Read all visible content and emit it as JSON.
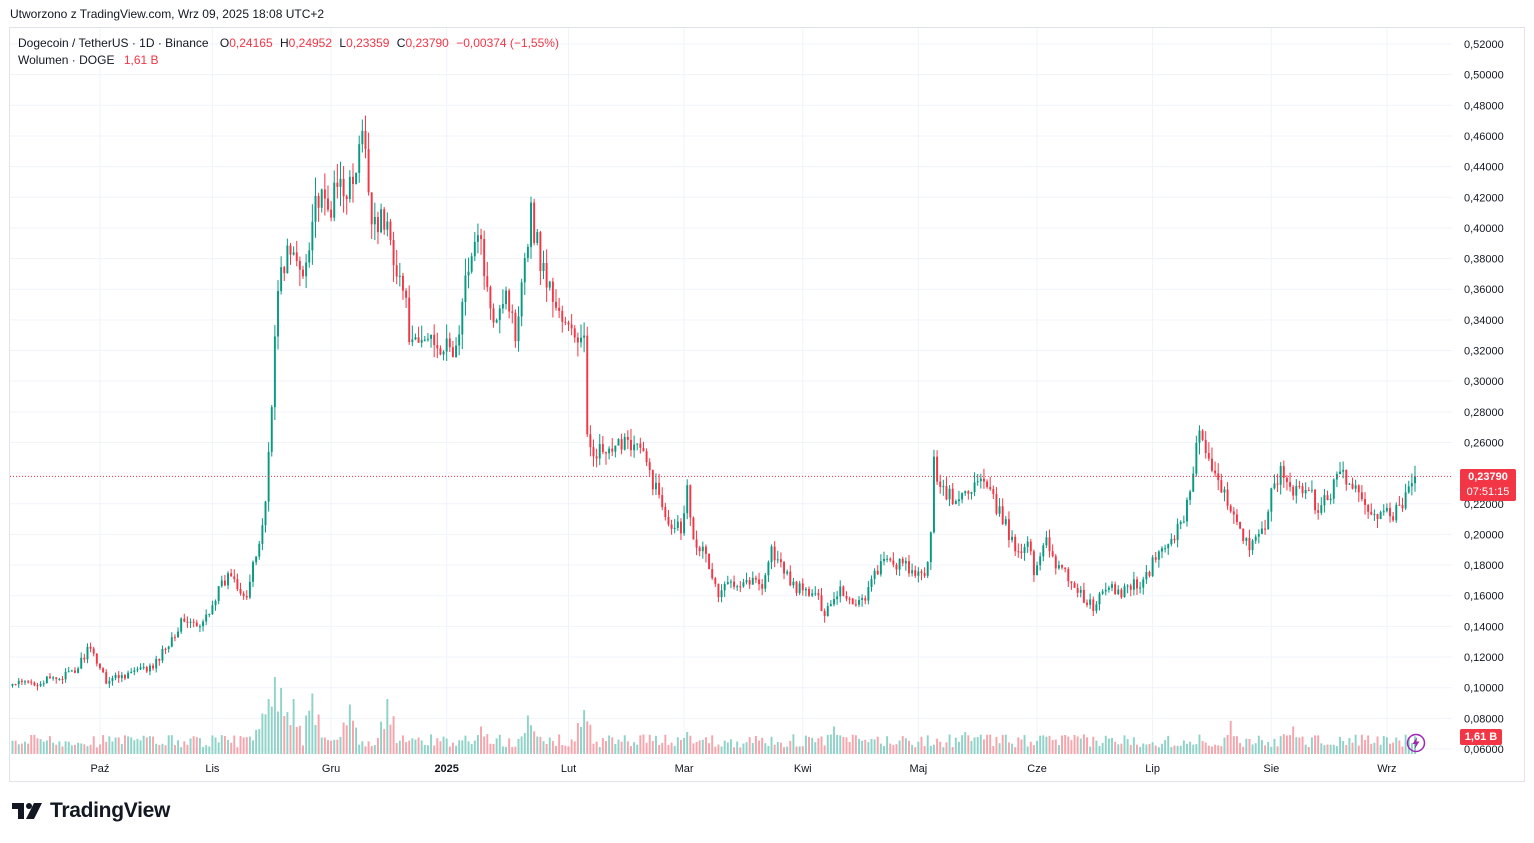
{
  "created_by": "Utworzono z TradingView.com, Wrz 09, 2025 18:08 UTC+2",
  "legend": {
    "symbol": "Dogecoin / TetherUS · 1D · Binance",
    "o_label": "O",
    "o": "0,24165",
    "h_label": "H",
    "h": "0,24952",
    "l_label": "L",
    "l": "0,23359",
    "c_label": "C",
    "c": "0,23790",
    "change": "−0,00374 (−1,55%)",
    "volume_label": "Wolumen · DOGE",
    "volume_value": "1,61 B"
  },
  "last_price": {
    "value": "0,23790",
    "countdown": "07:51:15"
  },
  "last_volume": "1,61 B",
  "brand": "TradingView",
  "colors": {
    "up": "#089981",
    "down": "#f23645",
    "vol_up": "#8fd3c8",
    "vol_down": "#f5a5ab",
    "grid": "#f0f3fa",
    "text": "#131722"
  },
  "chart_data": {
    "type": "candlestick",
    "symbol": "DOGE/USDT",
    "interval": "1D",
    "y_axis_ticks": [
      "0,52000",
      "0,50000",
      "0,48000",
      "0,46000",
      "0,44000",
      "0,42000",
      "0,40000",
      "0,38000",
      "0,36000",
      "0,34000",
      "0,32000",
      "0,30000",
      "0,28000",
      "0,26000",
      "0,24000",
      "0,22000",
      "0,20000",
      "0,18000",
      "0,16000",
      "0,14000",
      "0,12000",
      "0,10000",
      "0,08000",
      "0,06000"
    ],
    "x_axis_ticks": [
      "Paź",
      "Lis",
      "Gru",
      "2025",
      "Lut",
      "Mar",
      "Kwi",
      "Maj",
      "Cze",
      "Lip",
      "Sie",
      "Wrz"
    ],
    "ylim": [
      0.06,
      0.52
    ],
    "last_close": 0.2379,
    "close_anchors": [
      [
        0,
        0.102
      ],
      [
        10,
        0.104
      ],
      [
        15,
        0.107
      ],
      [
        20,
        0.11
      ],
      [
        24,
        0.125
      ],
      [
        27,
        0.118
      ],
      [
        30,
        0.105
      ],
      [
        38,
        0.11
      ],
      [
        45,
        0.113
      ],
      [
        50,
        0.13
      ],
      [
        55,
        0.145
      ],
      [
        60,
        0.138
      ],
      [
        65,
        0.16
      ],
      [
        70,
        0.175
      ],
      [
        72,
        0.168
      ],
      [
        75,
        0.16
      ],
      [
        79,
        0.195
      ],
      [
        81,
        0.22
      ],
      [
        85,
        0.36
      ],
      [
        88,
        0.385
      ],
      [
        93,
        0.37
      ],
      [
        97,
        0.42
      ],
      [
        101,
        0.41
      ],
      [
        105,
        0.43
      ],
      [
        109,
        0.425
      ],
      [
        112,
        0.46
      ],
      [
        115,
        0.41
      ],
      [
        120,
        0.4
      ],
      [
        125,
        0.36
      ],
      [
        128,
        0.32
      ],
      [
        134,
        0.33
      ],
      [
        139,
        0.32
      ],
      [
        142,
        0.32
      ],
      [
        147,
        0.39
      ],
      [
        150,
        0.39
      ],
      [
        153,
        0.34
      ],
      [
        158,
        0.36
      ],
      [
        161,
        0.33
      ],
      [
        163,
        0.37
      ],
      [
        166,
        0.41
      ],
      [
        169,
        0.38
      ],
      [
        172,
        0.36
      ],
      [
        177,
        0.335
      ],
      [
        180,
        0.33
      ],
      [
        183,
        0.325
      ],
      [
        184,
        0.26
      ],
      [
        187,
        0.255
      ],
      [
        192,
        0.25
      ],
      [
        196,
        0.265
      ],
      [
        201,
        0.255
      ],
      [
        206,
        0.23
      ],
      [
        210,
        0.21
      ],
      [
        214,
        0.205
      ],
      [
        216,
        0.23
      ],
      [
        218,
        0.2
      ],
      [
        222,
        0.185
      ],
      [
        226,
        0.16
      ],
      [
        230,
        0.17
      ],
      [
        236,
        0.17
      ],
      [
        240,
        0.168
      ],
      [
        243,
        0.19
      ],
      [
        247,
        0.175
      ],
      [
        251,
        0.165
      ],
      [
        257,
        0.16
      ],
      [
        260,
        0.15
      ],
      [
        265,
        0.165
      ],
      [
        269,
        0.155
      ],
      [
        273,
        0.16
      ],
      [
        277,
        0.178
      ],
      [
        280,
        0.182
      ],
      [
        285,
        0.18
      ],
      [
        290,
        0.172
      ],
      [
        292,
        0.172
      ],
      [
        294,
        0.2
      ],
      [
        295,
        0.245
      ],
      [
        298,
        0.23
      ],
      [
        302,
        0.22
      ],
      [
        306,
        0.23
      ],
      [
        310,
        0.235
      ],
      [
        313,
        0.225
      ],
      [
        317,
        0.21
      ],
      [
        321,
        0.19
      ],
      [
        325,
        0.195
      ],
      [
        327,
        0.175
      ],
      [
        331,
        0.2
      ],
      [
        334,
        0.18
      ],
      [
        339,
        0.17
      ],
      [
        343,
        0.158
      ],
      [
        346,
        0.152
      ],
      [
        350,
        0.165
      ],
      [
        355,
        0.162
      ],
      [
        358,
        0.168
      ],
      [
        362,
        0.168
      ],
      [
        366,
        0.185
      ],
      [
        370,
        0.195
      ],
      [
        374,
        0.205
      ],
      [
        377,
        0.23
      ],
      [
        380,
        0.27
      ],
      [
        382,
        0.25
      ],
      [
        386,
        0.23
      ],
      [
        390,
        0.22
      ],
      [
        393,
        0.205
      ],
      [
        396,
        0.19
      ],
      [
        400,
        0.2
      ],
      [
        403,
        0.225
      ],
      [
        406,
        0.24
      ],
      [
        409,
        0.232
      ],
      [
        413,
        0.228
      ],
      [
        416,
        0.225
      ],
      [
        418,
        0.215
      ],
      [
        422,
        0.228
      ],
      [
        426,
        0.24
      ],
      [
        429,
        0.232
      ],
      [
        432,
        0.218
      ],
      [
        436,
        0.215
      ],
      [
        440,
        0.212
      ],
      [
        444,
        0.216
      ],
      [
        446,
        0.222
      ],
      [
        449,
        0.2379
      ]
    ],
    "volume_peaks_billion": [
      [
        0,
        1.2
      ],
      [
        80,
        3.5
      ],
      [
        82,
        5.0
      ],
      [
        84,
        7.0
      ],
      [
        86,
        6.0
      ],
      [
        90,
        5.0
      ],
      [
        96,
        5.5
      ],
      [
        108,
        4.5
      ],
      [
        120,
        5.0
      ],
      [
        150,
        2.5
      ],
      [
        165,
        3.5
      ],
      [
        183,
        4.0
      ],
      [
        216,
        2.0
      ],
      [
        263,
        2.5
      ],
      [
        305,
        2.0
      ],
      [
        390,
        3.0
      ],
      [
        410,
        2.5
      ],
      [
        449,
        1.61
      ]
    ]
  }
}
